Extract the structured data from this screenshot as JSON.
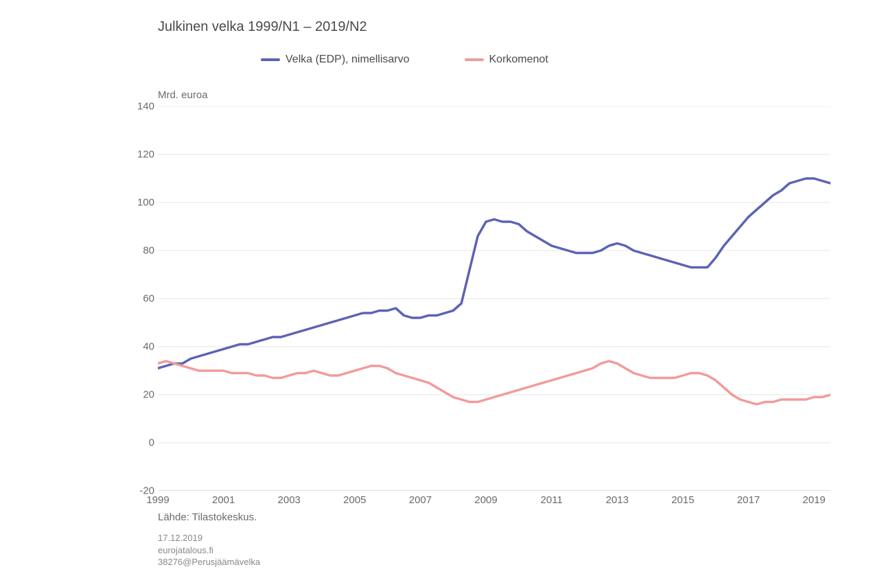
{
  "chart": {
    "type": "line",
    "title": "Julkinen velka 1999/N1 – 2019/N2",
    "y_axis_label": "Mrd. euroa",
    "background_color": "#ffffff",
    "grid_color": "#e5e5e5",
    "baseline_color": "#bfbfbf",
    "text_color": "#555555",
    "title_fontsize": 20,
    "label_fontsize": 15,
    "legend_fontsize": 16,
    "line_width": 3.5,
    "ylim": [
      -20,
      140
    ],
    "ytick_step": 20,
    "x_ticks": [
      "1999",
      "2001",
      "2003",
      "2005",
      "2007",
      "2009",
      "2011",
      "2013",
      "2015",
      "2017",
      "2019"
    ],
    "x_start": 1999.0,
    "x_end": 2019.5,
    "series": [
      {
        "name": "Velka (EDP), nimellisarvo",
        "color": "#5b63b4",
        "data": [
          [
            1999.0,
            31
          ],
          [
            1999.25,
            32
          ],
          [
            1999.5,
            33
          ],
          [
            1999.75,
            33
          ],
          [
            2000.0,
            35
          ],
          [
            2000.25,
            36
          ],
          [
            2000.5,
            37
          ],
          [
            2000.75,
            38
          ],
          [
            2001.0,
            39
          ],
          [
            2001.25,
            40
          ],
          [
            2001.5,
            41
          ],
          [
            2001.75,
            41
          ],
          [
            2002.0,
            42
          ],
          [
            2002.25,
            43
          ],
          [
            2002.5,
            44
          ],
          [
            2002.75,
            44
          ],
          [
            2003.0,
            45
          ],
          [
            2003.25,
            46
          ],
          [
            2003.5,
            47
          ],
          [
            2003.75,
            48
          ],
          [
            2004.0,
            49
          ],
          [
            2004.25,
            50
          ],
          [
            2004.5,
            51
          ],
          [
            2004.75,
            52
          ],
          [
            2005.0,
            53
          ],
          [
            2005.25,
            54
          ],
          [
            2005.5,
            54
          ],
          [
            2005.75,
            55
          ],
          [
            2006.0,
            55
          ],
          [
            2006.25,
            56
          ],
          [
            2006.5,
            53
          ],
          [
            2006.75,
            52
          ],
          [
            2007.0,
            52
          ],
          [
            2007.25,
            53
          ],
          [
            2007.5,
            53
          ],
          [
            2007.75,
            54
          ],
          [
            2008.0,
            55
          ],
          [
            2008.25,
            58
          ],
          [
            2008.5,
            72
          ],
          [
            2008.75,
            86
          ],
          [
            2009.0,
            92
          ],
          [
            2009.25,
            93
          ],
          [
            2009.5,
            92
          ],
          [
            2009.75,
            92
          ],
          [
            2010.0,
            91
          ],
          [
            2010.25,
            88
          ],
          [
            2010.5,
            86
          ],
          [
            2010.75,
            84
          ],
          [
            2011.0,
            82
          ],
          [
            2011.25,
            81
          ],
          [
            2011.5,
            80
          ],
          [
            2011.75,
            79
          ],
          [
            2012.0,
            79
          ],
          [
            2012.25,
            79
          ],
          [
            2012.5,
            80
          ],
          [
            2012.75,
            82
          ],
          [
            2013.0,
            83
          ],
          [
            2013.25,
            82
          ],
          [
            2013.5,
            80
          ],
          [
            2013.75,
            79
          ],
          [
            2014.0,
            78
          ],
          [
            2014.25,
            77
          ],
          [
            2014.5,
            76
          ],
          [
            2014.75,
            75
          ],
          [
            2015.0,
            74
          ],
          [
            2015.25,
            73
          ],
          [
            2015.5,
            73
          ],
          [
            2015.75,
            73
          ],
          [
            2016.0,
            77
          ],
          [
            2016.25,
            82
          ],
          [
            2016.5,
            86
          ],
          [
            2016.75,
            90
          ],
          [
            2017.0,
            94
          ],
          [
            2017.25,
            97
          ],
          [
            2017.5,
            100
          ],
          [
            2017.75,
            103
          ],
          [
            2018.0,
            105
          ],
          [
            2018.25,
            108
          ],
          [
            2018.5,
            109
          ],
          [
            2018.75,
            110
          ],
          [
            2019.0,
            110
          ],
          [
            2019.25,
            109
          ],
          [
            2019.5,
            108
          ]
        ]
      },
      {
        "name": "Korkomenot",
        "color": "#f29a9a",
        "data": [
          [
            1999.0,
            33
          ],
          [
            1999.25,
            34
          ],
          [
            1999.5,
            33
          ],
          [
            1999.75,
            32
          ],
          [
            2000.0,
            31
          ],
          [
            2000.25,
            30
          ],
          [
            2000.5,
            30
          ],
          [
            2000.75,
            30
          ],
          [
            2001.0,
            30
          ],
          [
            2001.25,
            29
          ],
          [
            2001.5,
            29
          ],
          [
            2001.75,
            29
          ],
          [
            2002.0,
            28
          ],
          [
            2002.25,
            28
          ],
          [
            2002.5,
            27
          ],
          [
            2002.75,
            27
          ],
          [
            2003.0,
            28
          ],
          [
            2003.25,
            29
          ],
          [
            2003.5,
            29
          ],
          [
            2003.75,
            30
          ],
          [
            2004.0,
            29
          ],
          [
            2004.25,
            28
          ],
          [
            2004.5,
            28
          ],
          [
            2004.75,
            29
          ],
          [
            2005.0,
            30
          ],
          [
            2005.25,
            31
          ],
          [
            2005.5,
            32
          ],
          [
            2005.75,
            32
          ],
          [
            2006.0,
            31
          ],
          [
            2006.25,
            29
          ],
          [
            2006.5,
            28
          ],
          [
            2006.75,
            27
          ],
          [
            2007.0,
            26
          ],
          [
            2007.25,
            25
          ],
          [
            2007.5,
            23
          ],
          [
            2007.75,
            21
          ],
          [
            2008.0,
            19
          ],
          [
            2008.25,
            18
          ],
          [
            2008.5,
            17
          ],
          [
            2008.75,
            17
          ],
          [
            2009.0,
            18
          ],
          [
            2009.25,
            19
          ],
          [
            2009.5,
            20
          ],
          [
            2009.75,
            21
          ],
          [
            2010.0,
            22
          ],
          [
            2010.25,
            23
          ],
          [
            2010.5,
            24
          ],
          [
            2010.75,
            25
          ],
          [
            2011.0,
            26
          ],
          [
            2011.25,
            27
          ],
          [
            2011.5,
            28
          ],
          [
            2011.75,
            29
          ],
          [
            2012.0,
            30
          ],
          [
            2012.25,
            31
          ],
          [
            2012.5,
            33
          ],
          [
            2012.75,
            34
          ],
          [
            2013.0,
            33
          ],
          [
            2013.25,
            31
          ],
          [
            2013.5,
            29
          ],
          [
            2013.75,
            28
          ],
          [
            2014.0,
            27
          ],
          [
            2014.25,
            27
          ],
          [
            2014.5,
            27
          ],
          [
            2014.75,
            27
          ],
          [
            2015.0,
            28
          ],
          [
            2015.25,
            29
          ],
          [
            2015.5,
            29
          ],
          [
            2015.75,
            28
          ],
          [
            2016.0,
            26
          ],
          [
            2016.25,
            23
          ],
          [
            2016.5,
            20
          ],
          [
            2016.75,
            18
          ],
          [
            2017.0,
            17
          ],
          [
            2017.25,
            16
          ],
          [
            2017.5,
            17
          ],
          [
            2017.75,
            17
          ],
          [
            2018.0,
            18
          ],
          [
            2018.25,
            18
          ],
          [
            2018.5,
            18
          ],
          [
            2018.75,
            18
          ],
          [
            2019.0,
            19
          ],
          [
            2019.25,
            19
          ],
          [
            2019.5,
            20
          ]
        ]
      }
    ],
    "source_label": "Lähde: Tilastokeskus.",
    "footer_lines": [
      "17.12.2019",
      "eurojatalous.fi",
      "38276@Perusjäämävelka"
    ]
  }
}
